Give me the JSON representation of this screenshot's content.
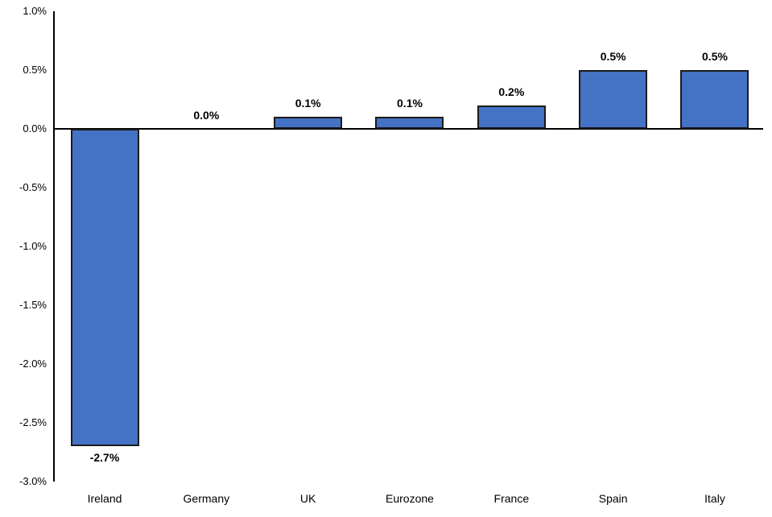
{
  "chart_data": {
    "type": "bar",
    "categories": [
      "Ireland",
      "Germany",
      "UK",
      "Eurozone",
      "France",
      "Spain",
      "Italy"
    ],
    "values": [
      -2.7,
      0.0,
      0.1,
      0.1,
      0.2,
      0.5,
      0.5
    ],
    "value_labels": [
      "-2.7%",
      "0.0%",
      "0.1%",
      "0.1%",
      "0.2%",
      "0.5%",
      "0.5%"
    ],
    "title": "",
    "xlabel": "",
    "ylabel": "",
    "ylim": [
      -3.0,
      1.0
    ],
    "ytick_interval": 0.5,
    "ytick_labels": [
      "1.0%",
      "0.5%",
      "0.0%",
      "-0.5%",
      "-1.0%",
      "-1.5%",
      "-2.0%",
      "-2.5%",
      "-3.0%"
    ],
    "grid": false,
    "legend": false,
    "colors": {
      "bar_fill": "#4472C4",
      "bar_border": "#1A1A1A",
      "axis": "#000000",
      "text": "#000000",
      "background": "#FFFFFF"
    }
  }
}
